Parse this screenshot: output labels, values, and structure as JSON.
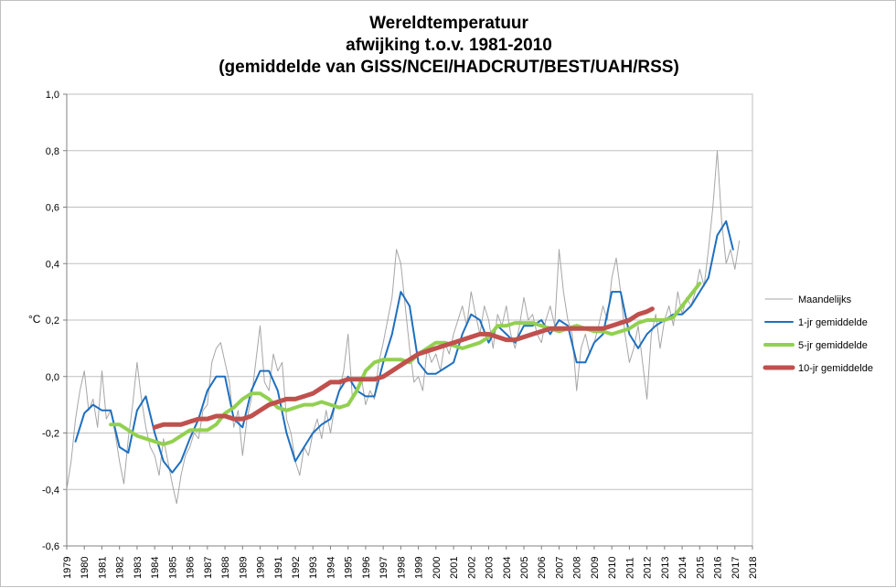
{
  "chart_data": {
    "type": "line",
    "title_lines": [
      "Wereldtemperatuur",
      "afwijking t.o.v. 1981-2010",
      "(gemiddelde van GISS/NCEI/HADCRUT/BEST/UAH/RSS)"
    ],
    "ylabel": "°C",
    "xlabel": "",
    "ylim": [
      -0.6,
      1.0
    ],
    "xlim": [
      1979,
      2018
    ],
    "y_ticks": [
      -0.6,
      -0.4,
      -0.2,
      0.0,
      0.2,
      0.4,
      0.6,
      0.8,
      1.0
    ],
    "y_tick_labels": [
      "-0,6",
      "-0,4",
      "-0,2",
      "0,0",
      "0,2",
      "0,4",
      "0,6",
      "0,8",
      "1,0"
    ],
    "x_ticks": [
      1979,
      1980,
      1981,
      1982,
      1983,
      1984,
      1985,
      1986,
      1987,
      1988,
      1989,
      1990,
      1991,
      1992,
      1993,
      1994,
      1995,
      1996,
      1997,
      1998,
      1999,
      2000,
      2001,
      2002,
      2003,
      2004,
      2005,
      2006,
      2007,
      2008,
      2009,
      2010,
      2011,
      2012,
      2013,
      2014,
      2015,
      2016,
      2017,
      2018
    ],
    "x_tick_labels": [
      "1979",
      "1980",
      "1981",
      "1982",
      "1983",
      "1984",
      "1985",
      "1986",
      "1987",
      "1988",
      "1989",
      "1990",
      "1991",
      "1992",
      "1993",
      "1994",
      "1995",
      "1996",
      "1997",
      "1998",
      "1999",
      "2000",
      "2001",
      "2002",
      "2003",
      "2004",
      "2005",
      "2006",
      "2007",
      "2008",
      "2009",
      "2010",
      "2011",
      "2012",
      "2013",
      "2014",
      "2015",
      "2016",
      "2017",
      "2018"
    ],
    "grid": "horizontal",
    "legend_position": "right",
    "series": [
      {
        "name": "Maandelijks",
        "color": "#a6a6a6",
        "width": 1,
        "x": [
          1979.0,
          1979.25,
          1979.5,
          1979.75,
          1980.0,
          1980.25,
          1980.5,
          1980.75,
          1981.0,
          1981.25,
          1981.5,
          1981.75,
          1982.0,
          1982.25,
          1982.5,
          1982.75,
          1983.0,
          1983.25,
          1983.5,
          1983.75,
          1984.0,
          1984.25,
          1984.5,
          1984.75,
          1985.0,
          1985.25,
          1985.5,
          1985.75,
          1986.0,
          1986.25,
          1986.5,
          1986.75,
          1987.0,
          1987.25,
          1987.5,
          1987.75,
          1988.0,
          1988.25,
          1988.5,
          1988.75,
          1989.0,
          1989.25,
          1989.5,
          1989.75,
          1990.0,
          1990.25,
          1990.5,
          1990.75,
          1991.0,
          1991.25,
          1991.5,
          1991.75,
          1992.0,
          1992.25,
          1992.5,
          1992.75,
          1993.0,
          1993.25,
          1993.5,
          1993.75,
          1994.0,
          1994.25,
          1994.5,
          1994.75,
          1995.0,
          1995.25,
          1995.5,
          1995.75,
          1996.0,
          1996.25,
          1996.5,
          1996.75,
          1997.0,
          1997.25,
          1997.5,
          1997.75,
          1998.0,
          1998.25,
          1998.5,
          1998.75,
          1999.0,
          1999.25,
          1999.5,
          1999.75,
          2000.0,
          2000.25,
          2000.5,
          2000.75,
          2001.0,
          2001.25,
          2001.5,
          2001.75,
          2002.0,
          2002.25,
          2002.5,
          2002.75,
          2003.0,
          2003.25,
          2003.5,
          2003.75,
          2004.0,
          2004.25,
          2004.5,
          2004.75,
          2005.0,
          2005.25,
          2005.5,
          2005.75,
          2006.0,
          2006.25,
          2006.5,
          2006.75,
          2007.0,
          2007.25,
          2007.5,
          2007.75,
          2008.0,
          2008.25,
          2008.5,
          2008.75,
          2009.0,
          2009.25,
          2009.5,
          2009.75,
          2010.0,
          2010.25,
          2010.5,
          2010.75,
          2011.0,
          2011.25,
          2011.5,
          2011.75,
          2012.0,
          2012.25,
          2012.5,
          2012.75,
          2013.0,
          2013.25,
          2013.5,
          2013.75,
          2014.0,
          2014.25,
          2014.5,
          2014.75,
          2015.0,
          2015.25,
          2015.5,
          2015.75,
          2016.0,
          2016.25,
          2016.5,
          2016.75,
          2017.0,
          2017.25
        ],
        "values": [
          -0.4,
          -0.3,
          -0.15,
          -0.05,
          0.02,
          -0.12,
          -0.08,
          -0.18,
          0.02,
          -0.15,
          -0.12,
          -0.2,
          -0.3,
          -0.38,
          -0.22,
          -0.1,
          0.05,
          -0.08,
          -0.18,
          -0.25,
          -0.28,
          -0.35,
          -0.22,
          -0.3,
          -0.38,
          -0.45,
          -0.35,
          -0.28,
          -0.25,
          -0.2,
          -0.22,
          -0.12,
          -0.1,
          0.05,
          0.1,
          0.12,
          0.05,
          -0.02,
          -0.18,
          -0.12,
          -0.28,
          -0.15,
          -0.08,
          0.05,
          0.18,
          -0.02,
          -0.05,
          0.08,
          0.02,
          0.05,
          -0.15,
          -0.2,
          -0.3,
          -0.35,
          -0.25,
          -0.28,
          -0.2,
          -0.15,
          -0.22,
          -0.12,
          -0.2,
          -0.1,
          -0.05,
          0.02,
          0.15,
          -0.08,
          -0.05,
          0.0,
          -0.1,
          -0.05,
          -0.08,
          0.05,
          0.12,
          0.2,
          0.28,
          0.45,
          0.4,
          0.25,
          0.1,
          -0.02,
          0.0,
          -0.05,
          0.1,
          0.05,
          0.08,
          0.02,
          0.12,
          0.08,
          0.15,
          0.2,
          0.25,
          0.18,
          0.3,
          0.22,
          0.15,
          0.25,
          0.2,
          0.1,
          0.22,
          0.18,
          0.25,
          0.15,
          0.1,
          0.18,
          0.28,
          0.2,
          0.22,
          0.15,
          0.12,
          0.2,
          0.25,
          0.18,
          0.45,
          0.3,
          0.2,
          0.15,
          -0.05,
          0.1,
          0.15,
          0.08,
          0.12,
          0.18,
          0.25,
          0.2,
          0.35,
          0.42,
          0.3,
          0.15,
          0.05,
          0.1,
          0.18,
          0.05,
          -0.08,
          0.15,
          0.22,
          0.1,
          0.2,
          0.25,
          0.18,
          0.3,
          0.22,
          0.28,
          0.25,
          0.3,
          0.38,
          0.32,
          0.45,
          0.6,
          0.8,
          0.55,
          0.4,
          0.45,
          0.38,
          0.48
        ]
      },
      {
        "name": "1-jr gemiddelde",
        "color": "#1f6fbf",
        "width": 2,
        "x": [
          1979.5,
          1980.0,
          1980.5,
          1981.0,
          1981.5,
          1982.0,
          1982.5,
          1983.0,
          1983.5,
          1984.0,
          1984.5,
          1985.0,
          1985.5,
          1986.0,
          1986.5,
          1987.0,
          1987.5,
          1988.0,
          1988.5,
          1989.0,
          1989.5,
          1990.0,
          1990.5,
          1991.0,
          1991.5,
          1992.0,
          1992.5,
          1993.0,
          1993.5,
          1994.0,
          1994.5,
          1995.0,
          1995.5,
          1996.0,
          1996.5,
          1997.0,
          1997.5,
          1998.0,
          1998.5,
          1999.0,
          1999.5,
          2000.0,
          2000.5,
          2001.0,
          2001.5,
          2002.0,
          2002.5,
          2003.0,
          2003.5,
          2004.0,
          2004.5,
          2005.0,
          2005.5,
          2006.0,
          2006.5,
          2007.0,
          2007.5,
          2008.0,
          2008.5,
          2009.0,
          2009.5,
          2010.0,
          2010.5,
          2011.0,
          2011.5,
          2012.0,
          2012.5,
          2013.0,
          2013.5,
          2014.0,
          2014.5,
          2015.0,
          2015.5,
          2016.0,
          2016.5,
          2016.9
        ],
        "values": [
          -0.23,
          -0.13,
          -0.1,
          -0.12,
          -0.12,
          -0.25,
          -0.27,
          -0.12,
          -0.07,
          -0.2,
          -0.3,
          -0.34,
          -0.3,
          -0.22,
          -0.15,
          -0.05,
          0.0,
          0.0,
          -0.15,
          -0.18,
          -0.05,
          0.02,
          0.02,
          -0.05,
          -0.2,
          -0.3,
          -0.25,
          -0.2,
          -0.17,
          -0.15,
          -0.05,
          0.0,
          -0.05,
          -0.07,
          -0.07,
          0.05,
          0.15,
          0.3,
          0.25,
          0.05,
          0.01,
          0.01,
          0.03,
          0.05,
          0.15,
          0.22,
          0.2,
          0.12,
          0.18,
          0.15,
          0.12,
          0.18,
          0.18,
          0.2,
          0.15,
          0.2,
          0.18,
          0.05,
          0.05,
          0.12,
          0.15,
          0.3,
          0.3,
          0.15,
          0.1,
          0.15,
          0.18,
          0.2,
          0.22,
          0.22,
          0.25,
          0.3,
          0.35,
          0.5,
          0.55,
          0.45
        ]
      },
      {
        "name": "5-jr gemiddelde",
        "color": "#92d050",
        "width": 4,
        "x": [
          1981.5,
          1982.0,
          1982.5,
          1983.0,
          1983.5,
          1984.0,
          1984.5,
          1985.0,
          1985.5,
          1986.0,
          1986.5,
          1987.0,
          1987.5,
          1988.0,
          1988.5,
          1989.0,
          1989.5,
          1990.0,
          1990.5,
          1991.0,
          1991.5,
          1992.0,
          1992.5,
          1993.0,
          1993.5,
          1994.0,
          1994.5,
          1995.0,
          1995.5,
          1996.0,
          1996.5,
          1997.0,
          1997.5,
          1998.0,
          1998.5,
          1999.0,
          1999.5,
          2000.0,
          2000.5,
          2001.0,
          2001.5,
          2002.0,
          2002.5,
          2003.0,
          2003.5,
          2004.0,
          2004.5,
          2005.0,
          2005.5,
          2006.0,
          2006.5,
          2007.0,
          2007.5,
          2008.0,
          2008.5,
          2009.0,
          2009.5,
          2010.0,
          2010.5,
          2011.0,
          2011.5,
          2012.0,
          2012.5,
          2013.0,
          2013.5,
          2014.0,
          2014.5,
          2015.0
        ],
        "values": [
          -0.17,
          -0.17,
          -0.19,
          -0.21,
          -0.22,
          -0.23,
          -0.24,
          -0.23,
          -0.21,
          -0.19,
          -0.19,
          -0.19,
          -0.17,
          -0.13,
          -0.11,
          -0.08,
          -0.06,
          -0.06,
          -0.08,
          -0.11,
          -0.12,
          -0.11,
          -0.1,
          -0.1,
          -0.09,
          -0.1,
          -0.11,
          -0.1,
          -0.05,
          0.02,
          0.05,
          0.06,
          0.06,
          0.06,
          0.05,
          0.08,
          0.1,
          0.12,
          0.12,
          0.11,
          0.1,
          0.11,
          0.12,
          0.14,
          0.18,
          0.18,
          0.19,
          0.19,
          0.19,
          0.18,
          0.17,
          0.16,
          0.17,
          0.18,
          0.17,
          0.16,
          0.16,
          0.15,
          0.16,
          0.17,
          0.19,
          0.2,
          0.2,
          0.2,
          0.21,
          0.25,
          0.29,
          0.33
        ]
      },
      {
        "name": "10-jr gemiddelde",
        "color": "#c0504d",
        "width": 5,
        "x": [
          1984.0,
          1984.5,
          1985.0,
          1985.5,
          1986.0,
          1986.5,
          1987.0,
          1987.5,
          1988.0,
          1988.5,
          1989.0,
          1989.5,
          1990.0,
          1990.5,
          1991.0,
          1991.5,
          1992.0,
          1992.5,
          1993.0,
          1993.5,
          1994.0,
          1994.5,
          1995.0,
          1995.5,
          1996.0,
          1996.5,
          1997.0,
          1997.5,
          1998.0,
          1998.5,
          1999.0,
          1999.5,
          2000.0,
          2000.5,
          2001.0,
          2001.5,
          2002.0,
          2002.5,
          2003.0,
          2003.5,
          2004.0,
          2004.5,
          2005.0,
          2005.5,
          2006.0,
          2006.5,
          2007.0,
          2007.5,
          2008.0,
          2008.5,
          2009.0,
          2009.5,
          2010.0,
          2010.5,
          2011.0,
          2011.5,
          2012.0,
          2012.3
        ],
        "values": [
          -0.18,
          -0.17,
          -0.17,
          -0.17,
          -0.16,
          -0.15,
          -0.15,
          -0.14,
          -0.14,
          -0.15,
          -0.15,
          -0.14,
          -0.12,
          -0.1,
          -0.09,
          -0.08,
          -0.08,
          -0.07,
          -0.06,
          -0.04,
          -0.02,
          -0.02,
          -0.01,
          -0.01,
          -0.01,
          -0.01,
          0.0,
          0.02,
          0.04,
          0.06,
          0.08,
          0.09,
          0.1,
          0.11,
          0.12,
          0.13,
          0.14,
          0.15,
          0.15,
          0.14,
          0.13,
          0.13,
          0.14,
          0.15,
          0.16,
          0.17,
          0.17,
          0.17,
          0.17,
          0.17,
          0.17,
          0.17,
          0.18,
          0.19,
          0.2,
          0.22,
          0.23,
          0.24
        ]
      }
    ]
  }
}
